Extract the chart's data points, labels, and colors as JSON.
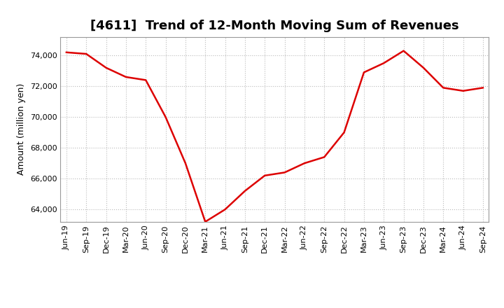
{
  "title": "[4611]  Trend of 12-Month Moving Sum of Revenues",
  "ylabel": "Amount (million yen)",
  "line_color": "#dd0000",
  "background_color": "#ffffff",
  "plot_bg_color": "#ffffff",
  "grid_color": "#bbbbbb",
  "labels": [
    "Jun-19",
    "Sep-19",
    "Dec-19",
    "Mar-20",
    "Jun-20",
    "Sep-20",
    "Dec-20",
    "Mar-21",
    "Jun-21",
    "Sep-21",
    "Dec-21",
    "Mar-22",
    "Jun-22",
    "Sep-22",
    "Dec-22",
    "Mar-23",
    "Jun-23",
    "Sep-23",
    "Dec-23",
    "Mar-24",
    "Jun-24",
    "Sep-24"
  ],
  "values": [
    74200,
    74100,
    73200,
    72600,
    72400,
    70000,
    67000,
    63200,
    64000,
    65200,
    66200,
    66400,
    67000,
    67400,
    69000,
    72900,
    73500,
    74300,
    73200,
    71900,
    71700,
    71900
  ],
  "ylim": [
    63200,
    75200
  ],
  "yticks": [
    64000,
    66000,
    68000,
    70000,
    72000,
    74000
  ],
  "title_fontsize": 13,
  "tick_fontsize": 8,
  "ylabel_fontsize": 9,
  "linewidth": 1.8
}
